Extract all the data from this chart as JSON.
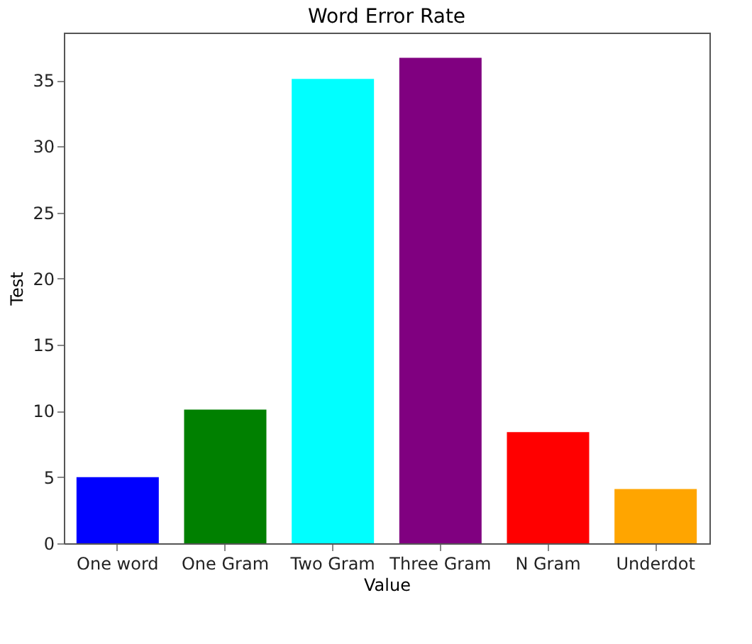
{
  "chart_data": {
    "type": "bar",
    "title": "Word Error Rate",
    "xlabel": "Value",
    "ylabel": "Test",
    "categories": [
      "One word",
      "One Gram",
      "Two Gram",
      "Three Gram",
      "N Gram",
      "Underdot"
    ],
    "values": [
      5.0,
      10.1,
      35.1,
      36.7,
      8.4,
      4.1
    ],
    "colors": [
      "#0000ff",
      "#008000",
      "#00ffff",
      "#800080",
      "#ff0000",
      "#ffa500"
    ],
    "ylim": [
      0,
      38.6
    ],
    "yticks": [
      0,
      5,
      10,
      15,
      20,
      25,
      30,
      35
    ],
    "grid": false,
    "legend": false
  }
}
